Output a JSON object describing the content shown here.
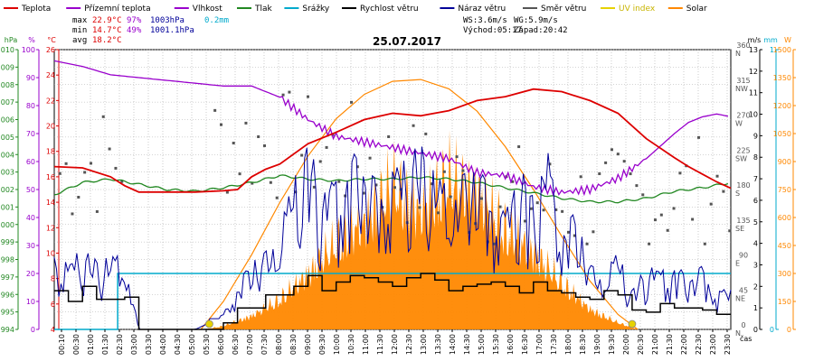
{
  "title": "25.07.2017",
  "legend": [
    {
      "label": "Teplota",
      "color": "#dd0000"
    },
    {
      "label": "Přízemní teplota",
      "color": "#9900cc"
    },
    {
      "label": "Vlhkost",
      "color": "#9900cc"
    },
    {
      "label": "Tlak",
      "color": "#228822"
    },
    {
      "label": "Srážky",
      "color": "#00aacc"
    },
    {
      "label": "Rychlost větru",
      "color": "#000000"
    },
    {
      "label": "Náraz větru",
      "color": "#000099"
    },
    {
      "label": "Směr větru",
      "color": "#555555"
    },
    {
      "label": "UV index",
      "color": "#e6d200"
    },
    {
      "label": "Solar",
      "color": "#ff8800"
    }
  ],
  "stats": {
    "max_label": "max",
    "max_temp": "22.9°C",
    "max_hum": "97%",
    "max_press": "1003hPa",
    "max_rain": "0.2mm",
    "min_label": "min",
    "min_temp": "14.7°C",
    "min_hum": "49%",
    "min_press": "1001.1hPa",
    "avg_label": "avg",
    "avg_temp": "18.2°C"
  },
  "wind_info": {
    "ws": "WS:3.6m/s",
    "wg": "WG:5.9m/s",
    "sunrise": "Východ:05:17",
    "sunset": "Západ:20:42"
  },
  "colors": {
    "temp": "#dd0000",
    "humidity": "#9900cc",
    "pressure": "#228822",
    "rain": "#00aacc",
    "wind": "#000000",
    "gust": "#000099",
    "dir": "#555555",
    "uv": "#e6d200",
    "solar": "#ff8800"
  },
  "chart_data": {
    "type": "line",
    "title": "25.07.2017",
    "x_unit": "čas",
    "x_ticks": [
      "00:10",
      "00:30",
      "01:00",
      "01:30",
      "02:30",
      "03:00",
      "03:30",
      "04:00",
      "04:30",
      "05:00",
      "05:30",
      "06:00",
      "06:30",
      "07:00",
      "07:30",
      "08:00",
      "08:30",
      "09:00",
      "09:30",
      "10:00",
      "10:30",
      "11:00",
      "11:30",
      "12:00",
      "12:30",
      "13:00",
      "13:30",
      "14:00",
      "14:30",
      "15:00",
      "15:30",
      "16:00",
      "16:30",
      "17:00",
      "17:30",
      "18:00",
      "18:30",
      "19:00",
      "19:30",
      "20:00",
      "20:30",
      "21:00",
      "21:30",
      "22:00",
      "22:30",
      "23:00",
      "23:30"
    ],
    "left_axes": [
      {
        "unit": "hPa",
        "min": 994,
        "max": 1010,
        "ticks": [
          994,
          995,
          996,
          997,
          998,
          999,
          1000,
          1001,
          1002,
          1003,
          1004,
          1005,
          1006,
          1007,
          1008,
          1009,
          1010
        ]
      },
      {
        "unit": "%",
        "min": 0,
        "max": 100,
        "ticks": [
          0,
          10,
          20,
          30,
          40,
          50,
          60,
          70,
          80,
          90,
          100
        ]
      },
      {
        "unit": "°C",
        "min": 4,
        "max": 26,
        "ticks": [
          4,
          6,
          8,
          10,
          12,
          14,
          16,
          18,
          20,
          22,
          24,
          26
        ]
      }
    ],
    "right_axes": [
      {
        "unit": "m/s",
        "min": 0,
        "max": 13,
        "ticks": [
          0,
          1,
          2,
          3,
          4,
          5,
          6,
          7,
          8,
          9,
          10,
          11,
          12,
          13
        ]
      },
      {
        "unit": "mm",
        "min": 0,
        "max": 1,
        "ticks": [
          0,
          1
        ]
      },
      {
        "unit": "W",
        "min": 0,
        "max": 1500,
        "ticks": [
          0,
          150,
          300,
          450,
          600,
          750,
          900,
          1050,
          1200,
          1350,
          1500
        ]
      }
    ],
    "direction_axis": {
      "labels": [
        {
          "deg": "0",
          "name": "N"
        },
        {
          "deg": "45",
          "name": "NE"
        },
        {
          "deg": "90",
          "name": "E"
        },
        {
          "deg": "135",
          "name": "SE"
        },
        {
          "deg": "180",
          "name": "S"
        },
        {
          "deg": "225",
          "name": "SW"
        },
        {
          "deg": "270",
          "name": "W"
        },
        {
          "deg": "315",
          "name": "NW"
        },
        {
          "deg": "360",
          "name": "N"
        }
      ]
    },
    "series": [
      {
        "name": "Teplota",
        "unit": "°C",
        "hours": [
          0,
          1,
          2,
          2.5,
          3,
          4,
          5,
          6,
          6.5,
          7,
          7.5,
          8,
          9,
          10,
          11,
          12,
          13,
          14,
          15,
          16,
          17,
          18,
          19,
          20,
          21,
          22,
          22.5,
          23,
          23.5,
          24
        ],
        "values": [
          16.8,
          16.7,
          16.0,
          15.3,
          14.8,
          14.8,
          14.8,
          14.9,
          15.0,
          16.0,
          16.6,
          17.0,
          18.6,
          19.5,
          20.5,
          21.0,
          20.8,
          21.2,
          22.0,
          22.3,
          22.9,
          22.7,
          22.0,
          21.0,
          19.0,
          17.5,
          16.8,
          16.2,
          15.6,
          15.1
        ]
      },
      {
        "name": "Vlhkost",
        "unit": "%",
        "hours": [
          0,
          1,
          2,
          3,
          4,
          5,
          6,
          7,
          8,
          9,
          10,
          11,
          12,
          13,
          14,
          15,
          16,
          17,
          18,
          19,
          20,
          21,
          22,
          22.5,
          23,
          23.5,
          24
        ],
        "values": [
          96,
          94,
          91,
          90,
          89,
          88,
          87,
          87,
          83,
          75,
          69,
          67,
          65,
          63,
          61,
          56,
          55,
          51,
          49,
          50,
          54,
          61,
          70,
          74,
          76,
          77,
          76
        ]
      },
      {
        "name": "Tlak",
        "unit": "hPa",
        "hours": [
          0,
          1,
          2,
          3,
          4,
          5,
          6,
          7,
          8,
          9,
          10,
          11,
          12,
          13,
          14,
          15,
          16,
          17,
          18,
          19,
          20,
          21,
          22,
          23,
          24
        ],
        "values": [
          1001.7,
          1002.4,
          1002.6,
          1002.3,
          1002.0,
          1001.9,
          1002.1,
          1002.4,
          1002.8,
          1002.6,
          1002.5,
          1002.6,
          1002.6,
          1002.7,
          1002.6,
          1002.4,
          1002.1,
          1001.8,
          1001.5,
          1001.3,
          1001.3,
          1001.5,
          1001.9,
          1002.1,
          1002.4
        ]
      },
      {
        "name": "Srážky",
        "unit": "mm",
        "hours": [
          0,
          2.25,
          2.25,
          24
        ],
        "values": [
          0,
          0,
          0.2,
          0.2
        ]
      },
      {
        "name": "Rychlost větru",
        "unit": "m/s",
        "hours": [
          0,
          0.5,
          1,
          1.5,
          2,
          2.5,
          3,
          5,
          5.5,
          6,
          6.5,
          7,
          7.5,
          8,
          8.5,
          9,
          9.5,
          10,
          10.5,
          11,
          11.5,
          12,
          12.5,
          13,
          13.5,
          14,
          14.5,
          15,
          15.5,
          16,
          16.5,
          17,
          17.5,
          18,
          18.5,
          19,
          19.5,
          20,
          20.5,
          21,
          21.5,
          22,
          22.5,
          23,
          23.5,
          24
        ],
        "values": [
          1.8,
          1.3,
          2.0,
          1.4,
          1.4,
          1.5,
          0,
          0,
          0,
          0.3,
          1.0,
          1.0,
          1.6,
          1.6,
          2.0,
          2.5,
          1.8,
          2.2,
          2.5,
          2.4,
          2.2,
          2.0,
          2.4,
          2.6,
          2.3,
          1.8,
          2.0,
          2.1,
          2.2,
          2.0,
          1.7,
          2.2,
          1.8,
          1.7,
          1.5,
          1.4,
          1.8,
          1.6,
          0.9,
          0.8,
          1.2,
          1.0,
          1.0,
          0.9,
          0.7,
          0.8
        ]
      },
      {
        "name": "Náraz větru",
        "unit": "m/s",
        "hours": [
          0,
          0.5,
          1,
          1.5,
          2,
          2.5,
          3,
          5,
          6,
          6.5,
          7,
          7.5,
          8,
          8.5,
          9,
          9.5,
          10,
          10.5,
          11,
          11.5,
          12,
          12.5,
          13,
          13.5,
          14,
          14.5,
          15,
          15.5,
          16,
          16.5,
          17,
          17.5,
          18,
          18.5,
          19,
          19.5,
          20,
          20.5,
          21,
          21.5,
          22,
          22.5,
          23,
          23.5,
          24
        ],
        "values": [
          3.1,
          2.5,
          3.3,
          2.7,
          2.8,
          2.9,
          0,
          0,
          0.6,
          1.8,
          2.6,
          3.0,
          4.0,
          5.8,
          7.5,
          5.5,
          6.0,
          7.0,
          6.4,
          5.7,
          6.2,
          6.8,
          7.4,
          6.0,
          5.5,
          6.0,
          6.3,
          5.6,
          4.6,
          6.5,
          5.3,
          7.0,
          4.2,
          4.5,
          2.5,
          2.2,
          3.0,
          1.5,
          2.6,
          2.3,
          2.6,
          2.0,
          2.5,
          1.5,
          1.6
        ]
      },
      {
        "name": "Solar",
        "unit": "W",
        "hours": [
          5.3,
          6,
          7,
          8,
          9,
          10,
          11,
          12,
          13,
          14,
          15,
          16,
          17,
          18,
          19,
          20,
          20.7
        ],
        "values": [
          0,
          20,
          80,
          180,
          330,
          520,
          640,
          860,
          700,
          900,
          820,
          600,
          460,
          280,
          120,
          40,
          0
        ]
      },
      {
        "name": "Solar max",
        "unit": "W",
        "hours": [
          5.2,
          6,
          7,
          8,
          9,
          10,
          11,
          12,
          13,
          14,
          15,
          16,
          17,
          18,
          19,
          20,
          20.7
        ],
        "values": [
          0,
          150,
          400,
          680,
          930,
          1130,
          1260,
          1330,
          1340,
          1290,
          1170,
          980,
          750,
          500,
          260,
          80,
          0
        ]
      },
      {
        "name": "UV index",
        "unit": "",
        "hours": [
          5.5,
          20.5
        ],
        "values": [
          0,
          0
        ]
      }
    ]
  }
}
